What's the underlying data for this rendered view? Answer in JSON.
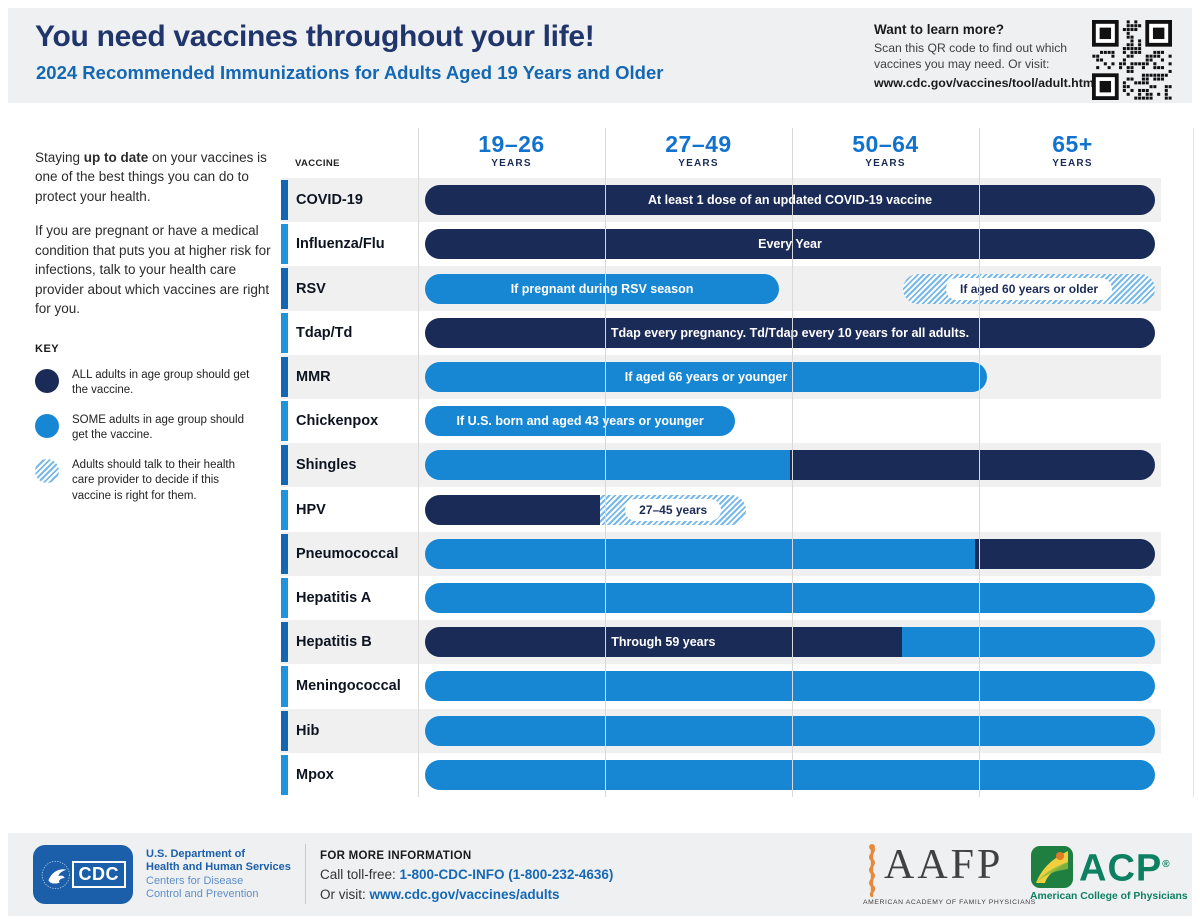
{
  "header": {
    "title": "You need vaccines throughout your life!",
    "subtitle": "2024 Recommended Immunizations for Adults Aged 19 Years and Older",
    "learn_more": {
      "heading": "Want to learn more?",
      "line1": "Scan this QR code to find out which",
      "line2": "vaccines you may need. Or visit:",
      "url": "www.cdc.gov/vaccines/tool/adult.html"
    }
  },
  "sidebar": {
    "intro1_pre": "Staying ",
    "intro1_bold": "up to date",
    "intro1_post": " on your vaccines is one of the best things you can do to protect your health.",
    "intro2": "If you are pregnant or have a medical condition that puts you at higher risk for infections, talk to your health care provider about which vaccines are right for you.",
    "key": {
      "heading": "KEY",
      "items": [
        {
          "type": "all",
          "label": "ALL adults in age group should get the vaccine."
        },
        {
          "type": "some",
          "label": "SOME adults in age group should get the vaccine."
        },
        {
          "type": "talk",
          "label": "Adults should talk to their health care provider to decide if this vaccine is right for them."
        }
      ]
    }
  },
  "chart_data": {
    "type": "timeline-bar",
    "vaccine_header": "VACCINE",
    "columns": [
      {
        "range": "19–26",
        "unit": "YEARS"
      },
      {
        "range": "27–49",
        "unit": "YEARS"
      },
      {
        "range": "50–64",
        "unit": "YEARS"
      },
      {
        "range": "65+",
        "unit": "YEARS"
      }
    ],
    "legend_note": "all = ALL adults in age group; some = SOME adults in age group; talk = talk to health care provider",
    "rows": [
      {
        "vaccine": "COVID-19",
        "segments": [
          {
            "style": "all",
            "from": 0,
            "to": 100,
            "ages": "19 through 65+",
            "label": "At least 1 dose of an updated COVID-19 vaccine",
            "label_style": "text"
          }
        ]
      },
      {
        "vaccine": "Influenza/Flu",
        "segments": [
          {
            "style": "all",
            "from": 0,
            "to": 100,
            "ages": "19 through 65+",
            "label": "Every Year",
            "label_style": "text"
          }
        ]
      },
      {
        "vaccine": "RSV",
        "segments": [
          {
            "style": "some",
            "from": 0,
            "to": 48.5,
            "ages": "19 through 49",
            "label": "If pregnant during RSV season",
            "label_style": "text"
          },
          {
            "style": "talk",
            "from": 65.5,
            "to": 100,
            "ages": "60 and older",
            "label": "If aged 60 years or older",
            "label_style": "pill"
          }
        ]
      },
      {
        "vaccine": "Tdap/Td",
        "segments": [
          {
            "style": "all",
            "from": 0,
            "to": 100,
            "ages": "19 through 65+",
            "label": "Tdap every pregnancy. Td/Tdap every 10 years for all adults.",
            "label_style": "text"
          }
        ]
      },
      {
        "vaccine": "MMR",
        "segments": [
          {
            "style": "some",
            "from": 0,
            "to": 77,
            "ages": "19 through 66",
            "label": "If aged 66 years or younger",
            "label_style": "text"
          }
        ]
      },
      {
        "vaccine": "Chickenpox",
        "segments": [
          {
            "style": "some",
            "from": 0,
            "to": 42.5,
            "ages": "19 through 43",
            "label": "If U.S. born and aged 43 years or younger",
            "label_style": "text"
          }
        ]
      },
      {
        "vaccine": "Shingles",
        "segments": [
          {
            "style": "some",
            "from": 0,
            "to": 50,
            "ages": "19 through 49",
            "label": "",
            "label_style": "text"
          },
          {
            "style": "all",
            "from": 50,
            "to": 100,
            "ages": "50 and older",
            "label": "",
            "label_style": "text"
          }
        ]
      },
      {
        "vaccine": "HPV",
        "segments": [
          {
            "style": "all",
            "from": 0,
            "to": 24,
            "ages": "19 through 26",
            "label": "",
            "label_style": "text"
          },
          {
            "style": "talk",
            "from": 24,
            "to": 44,
            "ages": "27 through 45",
            "label": "27–45 years",
            "label_style": "pill"
          }
        ]
      },
      {
        "vaccine": "Pneumococcal",
        "segments": [
          {
            "style": "some",
            "from": 0,
            "to": 75.3,
            "ages": "19 through 64",
            "label": "",
            "label_style": "text"
          },
          {
            "style": "all",
            "from": 75.3,
            "to": 100,
            "ages": "65 and older",
            "label": "",
            "label_style": "text"
          }
        ]
      },
      {
        "vaccine": "Hepatitis A",
        "segments": [
          {
            "style": "some",
            "from": 0,
            "to": 100,
            "ages": "19 through 65+",
            "label": "",
            "label_style": "text"
          }
        ]
      },
      {
        "vaccine": "Hepatitis B",
        "segments": [
          {
            "style": "all",
            "from": 0,
            "to": 65.3,
            "ages": "19 through 59",
            "label": "Through 59 years",
            "label_style": "text"
          },
          {
            "style": "some",
            "from": 65.3,
            "to": 100,
            "ages": "60 and older",
            "label": "",
            "label_style": "text"
          }
        ]
      },
      {
        "vaccine": "Meningococcal",
        "segments": [
          {
            "style": "some",
            "from": 0,
            "to": 100,
            "ages": "19 through 65+",
            "label": "",
            "label_style": "text"
          }
        ]
      },
      {
        "vaccine": "Hib",
        "segments": [
          {
            "style": "some",
            "from": 0,
            "to": 100,
            "ages": "19 through 65+",
            "label": "",
            "label_style": "text"
          }
        ]
      },
      {
        "vaccine": "Mpox",
        "segments": [
          {
            "style": "some",
            "from": 0,
            "to": 100,
            "ages": "19 through 65+",
            "label": "",
            "label_style": "text"
          }
        ]
      }
    ]
  },
  "footer": {
    "cdc": {
      "logo_text": "CDC",
      "dept_line1": "U.S. Department of",
      "dept_line2": "Health and Human Services",
      "org_line1": "Centers for Disease",
      "org_line2": "Control and Prevention"
    },
    "info": {
      "heading": "FOR MORE INFORMATION",
      "call_pre": "Call toll-free: ",
      "phone": "1-800-CDC-INFO (1-800-232-4636)",
      "visit_pre": "Or visit: ",
      "url": "www.cdc.gov/vaccines/adults"
    },
    "aafp": {
      "name": "AAFP",
      "caption": "AMERICAN ACADEMY OF FAMILY PHYSICIANS"
    },
    "acp": {
      "name": "ACP",
      "reg": "®",
      "caption": "American College of Physicians"
    }
  },
  "colors": {
    "navy": "#1b2b57",
    "blue": "#1787d3",
    "hatch_blue": "#79b9e7",
    "header_blue": "#1273cf",
    "title_navy": "#20356b",
    "subtitle_blue": "#1467b2",
    "accent_dark": "#1566b1",
    "accent_light": "#2093da",
    "cdc_blue": "#1b5faa",
    "acp_green": "#0c8060",
    "aafp_orange": "#e8883a",
    "link_blue": "#1568b4",
    "band_gray": "#eff0f2",
    "row_gray": "#f0f0f1"
  }
}
